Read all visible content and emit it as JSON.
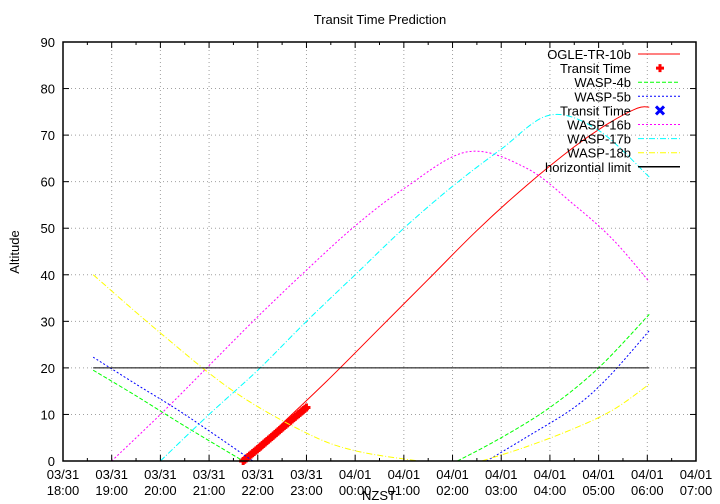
{
  "chart_data": {
    "type": "line",
    "title": "Transit Time Prediction",
    "xlabel": "NZST",
    "ylabel": "Altitude",
    "ylim": [
      0,
      90
    ],
    "yticks": [
      0,
      10,
      20,
      30,
      40,
      50,
      60,
      70,
      80,
      90
    ],
    "xlim_hours_from_0331_1800": [
      0,
      13
    ],
    "xticks": [
      {
        "date": "03/31",
        "time": "18:00"
      },
      {
        "date": "03/31",
        "time": "19:00"
      },
      {
        "date": "03/31",
        "time": "20:00"
      },
      {
        "date": "03/31",
        "time": "21:00"
      },
      {
        "date": "03/31",
        "time": "22:00"
      },
      {
        "date": "03/31",
        "time": "23:00"
      },
      {
        "date": "04/01",
        "time": "00:00"
      },
      {
        "date": "04/01",
        "time": "01:00"
      },
      {
        "date": "04/01",
        "time": "02:00"
      },
      {
        "date": "04/01",
        "time": "03:00"
      },
      {
        "date": "04/01",
        "time": "04:00"
      },
      {
        "date": "04/01",
        "time": "05:00"
      },
      {
        "date": "04/01",
        "time": "06:00"
      },
      {
        "date": "04/01",
        "time": "07:00"
      }
    ],
    "grid": true,
    "legend_position": "top-right",
    "series": [
      {
        "name": "OGLE-TR-10b",
        "color": "#ff0000",
        "style": "solid",
        "x": [
          3.7,
          4.5,
          5.5,
          6.5,
          7.5,
          8.5,
          9.5,
          10.5,
          11.2,
          11.8,
          12.04
        ],
        "y": [
          0,
          8,
          18,
          28.5,
          39,
          49.5,
          59,
          67.5,
          72.5,
          75.8,
          76
        ]
      },
      {
        "name": "Transit Time",
        "color": "#ff0000",
        "style": "points-plus",
        "x": [
          3.7,
          4.0,
          4.3,
          4.6,
          5.0
        ],
        "y": [
          0,
          2.6,
          5.3,
          8,
          11.5
        ]
      },
      {
        "name": "WASP-4b",
        "color": "#00ff00",
        "style": "dashed",
        "x": [
          0.62,
          1.5,
          2.5,
          3.7,
          8.1,
          9,
          10,
          11,
          12.04
        ],
        "y": [
          19.5,
          14,
          7.5,
          0,
          0,
          5,
          11.5,
          20,
          31.5
        ]
      },
      {
        "name": "WASP-5b",
        "color": "#0000ff",
        "style": "dotted",
        "x": [
          0.62,
          1.5,
          2.5,
          3.9,
          8.7,
          9.5,
          10.5,
          11.2,
          12.04
        ],
        "y": [
          22.3,
          16.5,
          10,
          0,
          0,
          5,
          11.5,
          18,
          28
        ]
      },
      {
        "name": "Transit Time",
        "color": "#0000ff",
        "style": "points-x",
        "x": [],
        "y": []
      },
      {
        "name": "WASP-16b",
        "color": "#ff00ff",
        "style": "dotted",
        "x": [
          1.0,
          2.0,
          3.0,
          4.0,
          5.0,
          6.0,
          7.0,
          8.3,
          9.5,
          10.5,
          11.3,
          12.04
        ],
        "y": [
          0,
          10,
          20.5,
          31,
          41,
          50.5,
          58.5,
          66.4,
          63,
          55,
          47.5,
          38.5
        ]
      },
      {
        "name": "WASP-17b",
        "color": "#00ffff",
        "style": "dash-dot",
        "x": [
          2.0,
          3.0,
          4.0,
          5.0,
          6.0,
          7.0,
          8.0,
          9.0,
          10.0,
          11.0,
          12.04
        ],
        "y": [
          0,
          10,
          19.5,
          30,
          40,
          50,
          59,
          67,
          74.3,
          71,
          61
        ]
      },
      {
        "name": "WASP-18b",
        "color": "#ffff00",
        "style": "dash-dot",
        "x": [
          0.62,
          2.0,
          3.5,
          5.0,
          6.0,
          7.3,
          8.6,
          9.5,
          10.5,
          11.3,
          12.04
        ],
        "y": [
          40,
          27.5,
          15,
          6,
          2.2,
          0,
          0,
          3,
          7,
          11,
          16.5
        ]
      },
      {
        "name": "horizontial limit",
        "color": "#000000",
        "style": "solid",
        "x": [
          0.62,
          12.04
        ],
        "y": [
          20,
          20
        ]
      }
    ]
  }
}
